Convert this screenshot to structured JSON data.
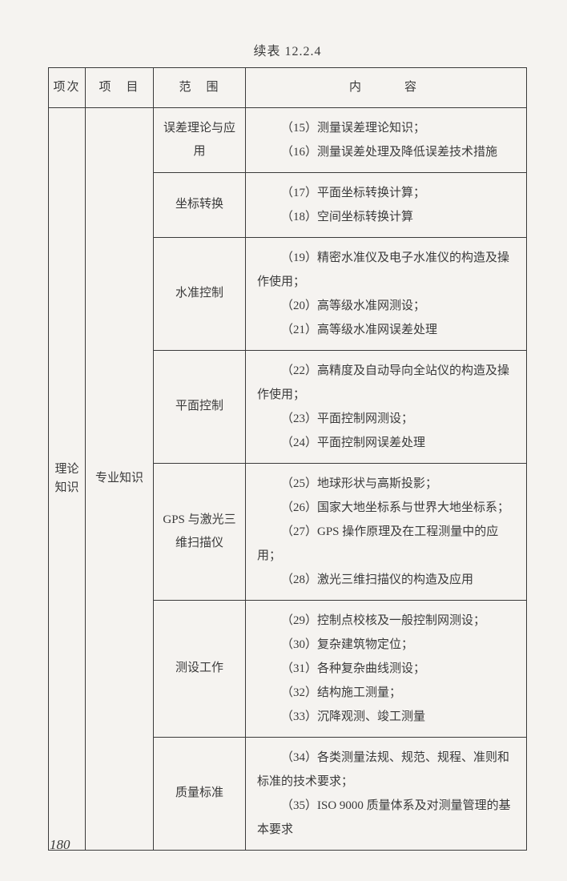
{
  "title": "续表 12.2.4",
  "headers": {
    "col1": "项次",
    "col2": "项　目",
    "col3": "范　围",
    "col4": "内　　容"
  },
  "merged": {
    "col1": "理论<br>知识",
    "col2": "专业知识"
  },
  "rows": [
    {
      "scope": "误差理论与应用",
      "content": [
        "（15）测量误差理论知识；",
        "（16）测量误差处理及降低误差技术措施"
      ]
    },
    {
      "scope": "坐标转换",
      "content": [
        "（17）平面坐标转换计算；",
        "（18）空间坐标转换计算"
      ]
    },
    {
      "scope": "水准控制",
      "content": [
        "（19）精密水准仪及电子水准仪的构造及操作使用；",
        "（20）高等级水准网测设；",
        "（21）高等级水准网误差处理"
      ]
    },
    {
      "scope": "平面控制",
      "content": [
        "（22）高精度及自动导向全站仪的构造及操作使用；",
        "（23）平面控制网测设；",
        "（24）平面控制网误差处理"
      ]
    },
    {
      "scope": "GPS 与激光三维扫描仪",
      "content": [
        "（25）地球形状与高斯投影；",
        "（26）国家大地坐标系与世界大地坐标系；",
        "（27）GPS 操作原理及在工程测量中的应用；",
        "（28）激光三维扫描仪的构造及应用"
      ]
    },
    {
      "scope": "测设工作",
      "content": [
        "（29）控制点校核及一般控制网测设；",
        "（30）复杂建筑物定位；",
        "（31）各种复杂曲线测设；",
        "（32）结构施工测量；",
        "（33）沉降观测、竣工测量"
      ]
    },
    {
      "scope": "质量标准",
      "content": [
        "（34）各类测量法规、规范、规程、准则和标准的技术要求；",
        "（35）ISO 9000 质量体系及对测量管理的基本要求"
      ]
    }
  ],
  "pageNumber": "180"
}
